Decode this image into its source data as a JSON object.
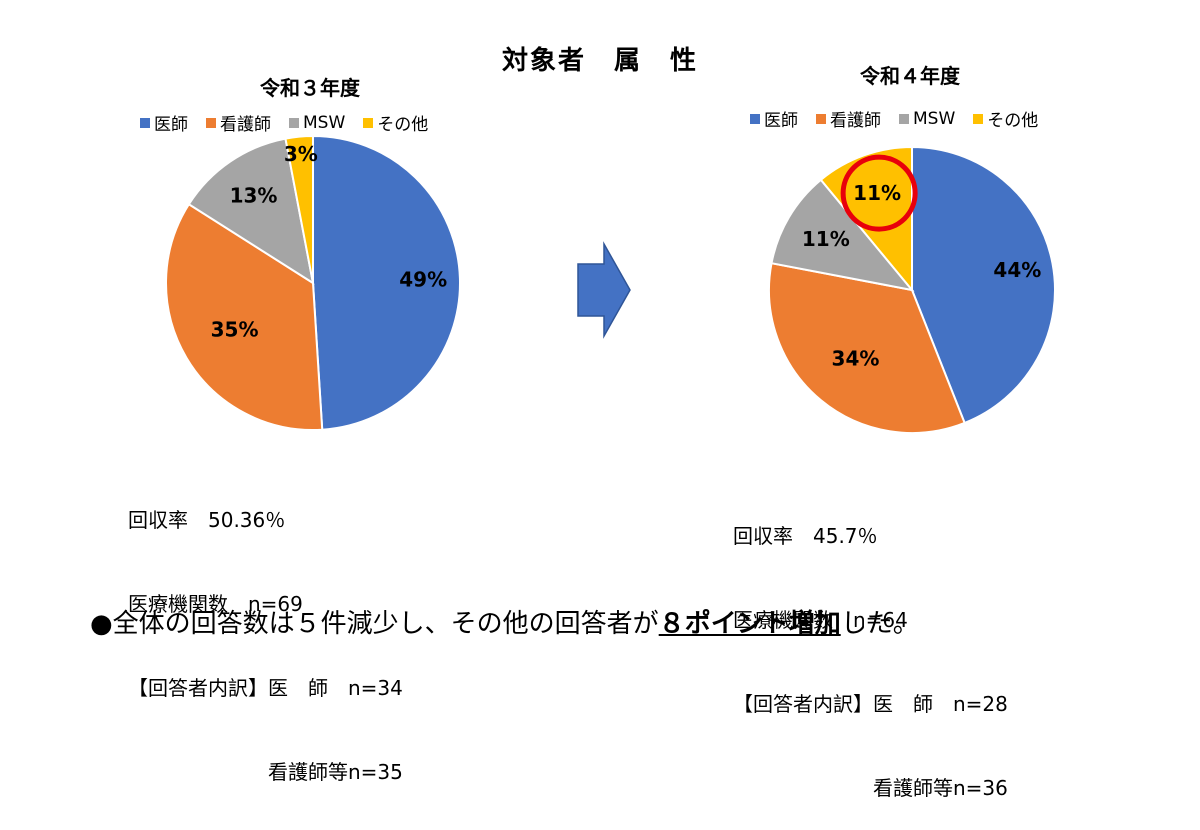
{
  "page_title": "対象者　属　性",
  "colors": {
    "doctor": "#4472C4",
    "nurse": "#ED7D31",
    "msw": "#A5A5A5",
    "other": "#FFC000",
    "highlight": "#E8000B",
    "arrow": "#4472C4"
  },
  "chart_data": [
    {
      "type": "pie",
      "title": "令和３年度",
      "categories": [
        "医師",
        "看護師",
        "MSW",
        "その他"
      ],
      "values": [
        49,
        35,
        13,
        3
      ],
      "labels": [
        "49%",
        "35%",
        "13%",
        "3%"
      ],
      "legend_position": "top"
    },
    {
      "type": "pie",
      "title": "令和４年度",
      "categories": [
        "医師",
        "看護師",
        "MSW",
        "その他"
      ],
      "values": [
        44,
        34,
        11,
        11
      ],
      "labels": [
        "44%",
        "34%",
        "11%",
        "11%"
      ],
      "legend_position": "top",
      "highlighted_category": "その他"
    }
  ],
  "stats_left": [
    "回収率　50.36％",
    "医療機関数　n=69",
    "【回答者内訳】医　師　n=34",
    "　　　　　　　看護師等n=35"
  ],
  "stats_right": [
    "回収率　45.7％",
    "医療機関数　n=64",
    "【回答者内訳】医　師　n=28",
    "　　　　　　　看護師等n=36"
  ],
  "footer": {
    "prefix": "●全体の回答数は５件減少し、その他の回答者が",
    "highlight": "８ポイント増加",
    "suffix": "した。"
  }
}
